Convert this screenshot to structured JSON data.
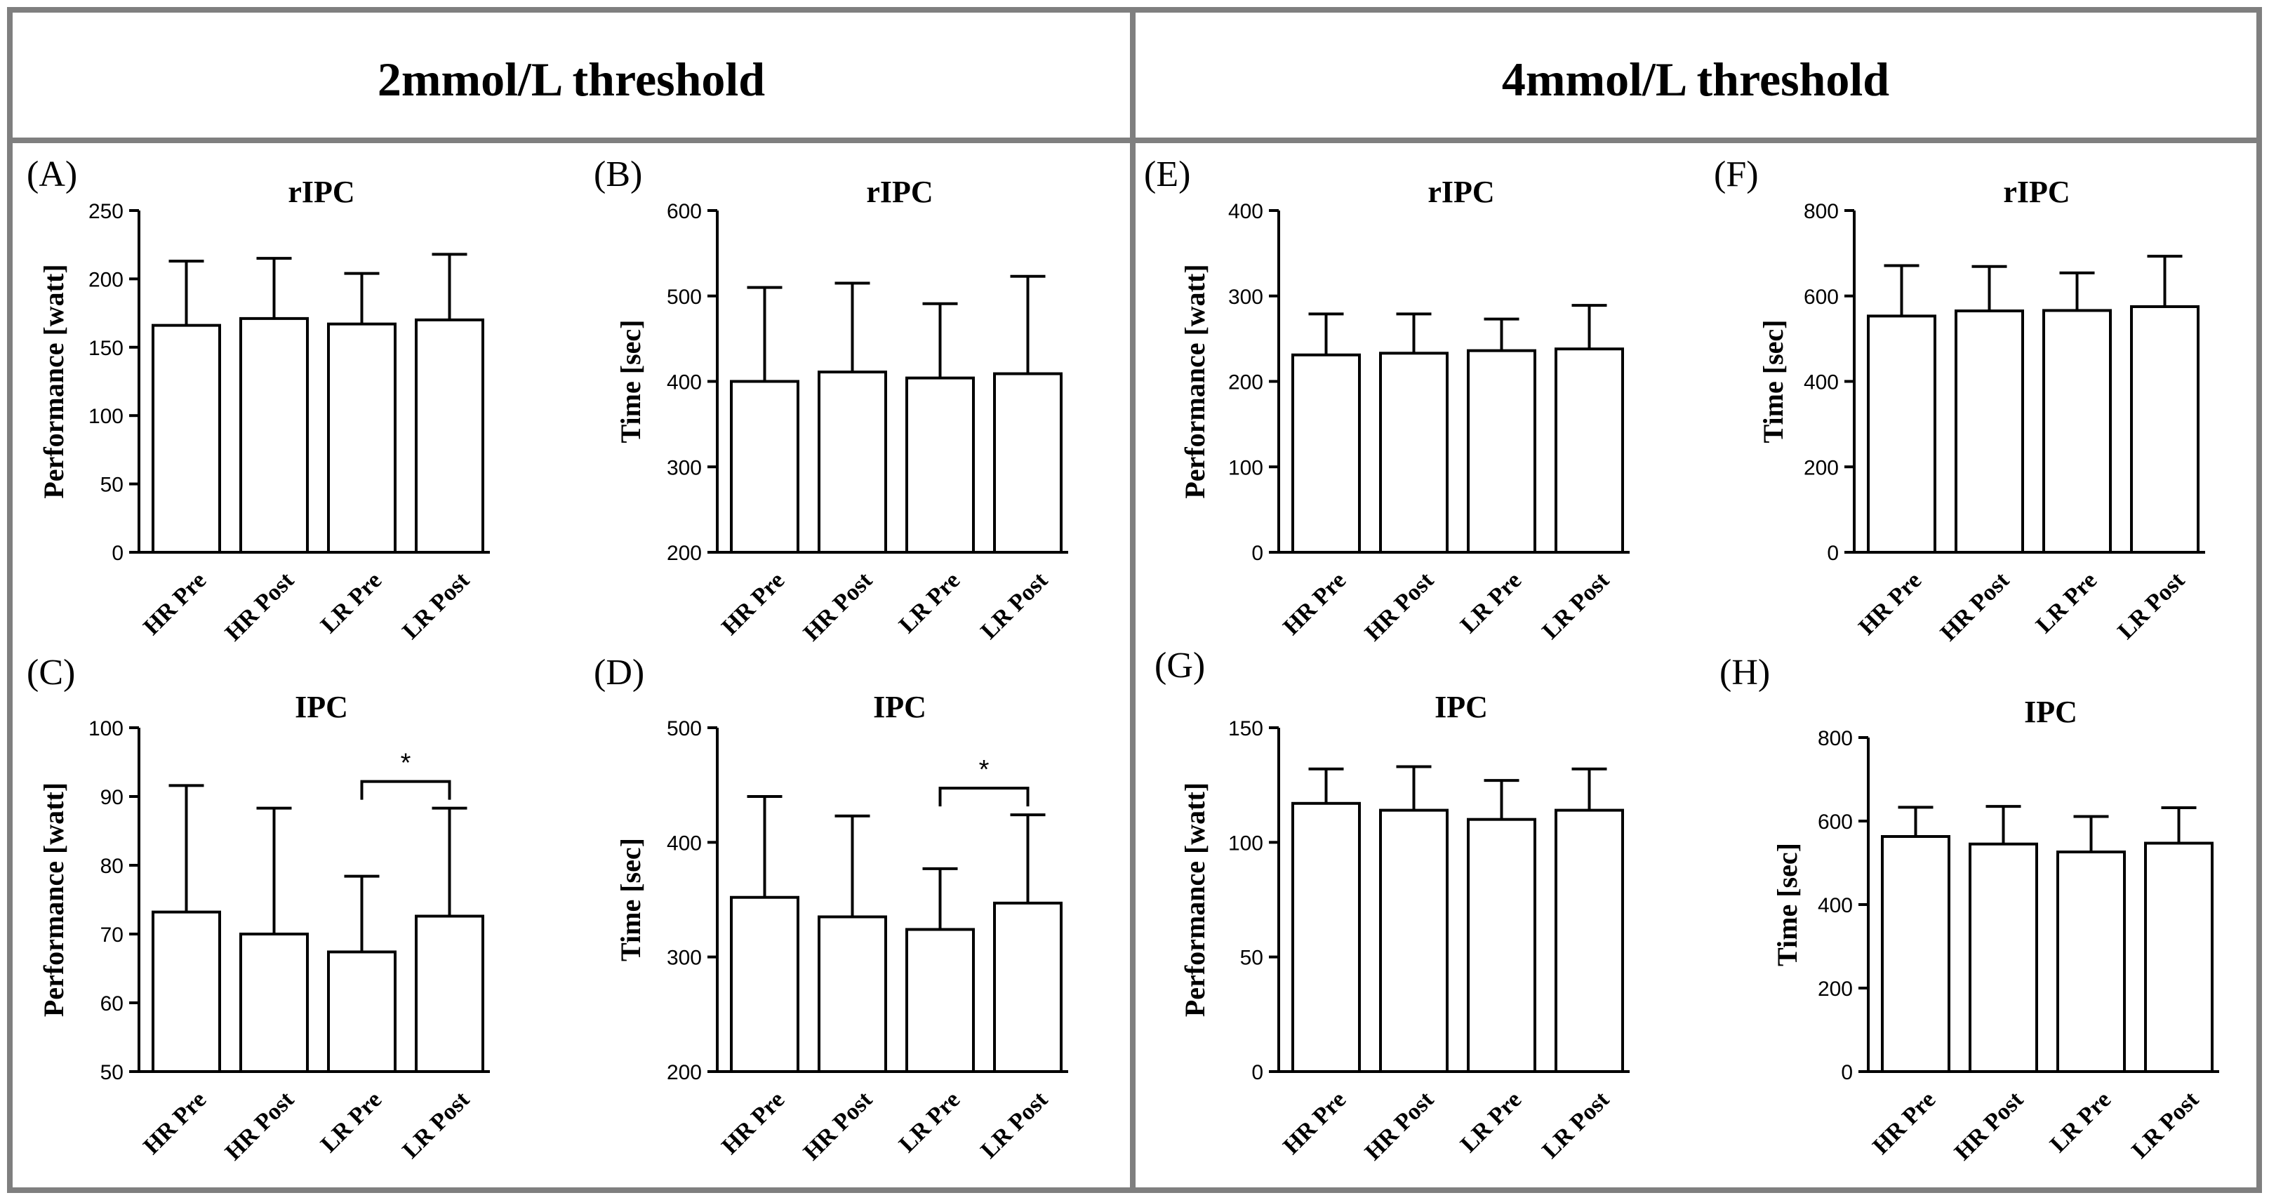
{
  "headers": {
    "left": "2mmol/L threshold",
    "right": "4mmol/L threshold"
  },
  "colors": {
    "frame": "#7f7f7f",
    "bar_fill": "#ffffff",
    "stroke": "#000000"
  },
  "chart_data": [
    {
      "id": "A",
      "letter": "(A)",
      "title": "rIPC",
      "type": "bar",
      "ylabel": "Performance [watt]",
      "ylim": [
        0,
        250
      ],
      "yticks": [
        "0",
        "50",
        "100",
        "150",
        "200",
        "250"
      ],
      "categories": [
        "HR Pre",
        "HR Post",
        "LR Pre",
        "LR Post"
      ],
      "values": [
        166,
        171,
        167,
        170
      ],
      "errors": [
        47,
        44,
        37,
        48
      ]
    },
    {
      "id": "B",
      "letter": "(B)",
      "title": "rIPC",
      "type": "bar",
      "ylabel": "Time [sec]",
      "ylim": [
        200,
        600
      ],
      "yticks": [
        "200",
        "300",
        "400",
        "500",
        "600"
      ],
      "categories": [
        "HR Pre",
        "HR Post",
        "LR Pre",
        "LR Post"
      ],
      "values": [
        400,
        411,
        404,
        409
      ],
      "errors": [
        110,
        104,
        87,
        114
      ]
    },
    {
      "id": "C",
      "letter": "(C)",
      "title": "IPC",
      "type": "bar",
      "ylabel": "Performance [watt]",
      "ylim": [
        50,
        100
      ],
      "yticks": [
        "50",
        "60",
        "70",
        "80",
        "90",
        "100"
      ],
      "categories": [
        "HR Pre",
        "HR Post",
        "LR Pre",
        "LR Post"
      ],
      "values": [
        73.2,
        70.0,
        67.4,
        72.6
      ],
      "errors": [
        18.4,
        18.3,
        11.0,
        15.7
      ],
      "significance": {
        "between": [
          2,
          3
        ],
        "label": "*"
      }
    },
    {
      "id": "D",
      "letter": "(D)",
      "title": "IPC",
      "type": "bar",
      "ylabel": "Time [sec]",
      "ylim": [
        200,
        500
      ],
      "yticks": [
        "200",
        "300",
        "400",
        "500"
      ],
      "categories": [
        "HR Pre",
        "HR Post",
        "LR Pre",
        "LR Post"
      ],
      "values": [
        352,
        335,
        324,
        347
      ],
      "errors": [
        88,
        88,
        53,
        77
      ],
      "significance": {
        "between": [
          2,
          3
        ],
        "label": "*"
      }
    },
    {
      "id": "E",
      "letter": "(E)",
      "title": "rIPC",
      "type": "bar",
      "ylabel": "Performance [watt]",
      "ylim": [
        0,
        400
      ],
      "yticks": [
        "0",
        "100",
        "200",
        "300",
        "400"
      ],
      "categories": [
        "HR Pre",
        "HR Post",
        "LR Pre",
        "LR Post"
      ],
      "values": [
        231,
        233,
        236,
        238
      ],
      "errors": [
        48,
        46,
        37,
        51
      ]
    },
    {
      "id": "F",
      "letter": "(F)",
      "title": "rIPC",
      "type": "bar",
      "ylabel": "Time [sec]",
      "ylim": [
        0,
        800
      ],
      "yticks": [
        "0",
        "200",
        "400",
        "600",
        "800"
      ],
      "categories": [
        "HR Pre",
        "HR Post",
        "LR Pre",
        "LR Post"
      ],
      "values": [
        553,
        565,
        566,
        575
      ],
      "errors": [
        118,
        104,
        88,
        118
      ]
    },
    {
      "id": "G",
      "letter": "(G)",
      "title": "IPC",
      "type": "bar",
      "ylabel": "Performance [watt]",
      "ylim": [
        0,
        150
      ],
      "yticks": [
        "0",
        "50",
        "100",
        "150"
      ],
      "categories": [
        "HR Pre",
        "HR Post",
        "LR Pre",
        "LR Post"
      ],
      "values": [
        117,
        114,
        110,
        114
      ],
      "errors": [
        15,
        19,
        17,
        18
      ]
    },
    {
      "id": "H",
      "letter": "(H)",
      "title": "IPC",
      "type": "bar",
      "ylabel": "Time [sec]",
      "ylim": [
        0,
        800
      ],
      "yticks": [
        "0",
        "200",
        "400",
        "600",
        "800"
      ],
      "categories": [
        "HR Pre",
        "HR Post",
        "LR Pre",
        "LR Post"
      ],
      "values": [
        563,
        545,
        526,
        547
      ],
      "errors": [
        70,
        90,
        85,
        85
      ]
    }
  ]
}
